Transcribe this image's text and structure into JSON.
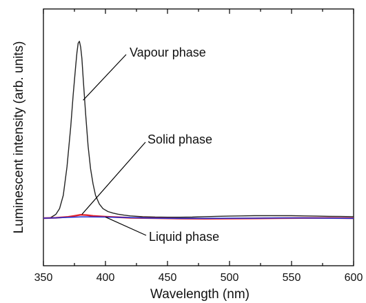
{
  "chart_data": {
    "type": "line",
    "title": "",
    "xlabel": "Wavelength (nm)",
    "ylabel": "Luminescent intensity (arb. units)",
    "xlim": [
      350,
      600
    ],
    "ylim": [
      -0.25,
      1.1
    ],
    "x_ticks": [
      "350",
      "400",
      "450",
      "500",
      "550",
      "600"
    ],
    "grid": false,
    "legend": "none",
    "colors": {
      "vapour": "#222222",
      "solid": "#e0202a",
      "liquid": "#1e2fd6"
    },
    "series": [
      {
        "name": "Vapour phase",
        "x": [
          350,
          355,
          360,
          363,
          366,
          369,
          372,
          374,
          376,
          377,
          378,
          379,
          380,
          381,
          382,
          384,
          386,
          388,
          390,
          392,
          395,
          398,
          402,
          406,
          410,
          415,
          420,
          430,
          440,
          450,
          460,
          470,
          480,
          490,
          500,
          510,
          520,
          530,
          540,
          550,
          560,
          570,
          580,
          590,
          600
        ],
        "values": [
          0.0,
          0.0,
          0.02,
          0.05,
          0.12,
          0.27,
          0.48,
          0.65,
          0.8,
          0.87,
          0.92,
          0.93,
          0.9,
          0.84,
          0.74,
          0.55,
          0.38,
          0.26,
          0.18,
          0.12,
          0.075,
          0.05,
          0.035,
          0.027,
          0.021,
          0.016,
          0.012,
          0.008,
          0.006,
          0.005,
          0.005,
          0.006,
          0.008,
          0.01,
          0.011,
          0.012,
          0.013,
          0.013,
          0.013,
          0.013,
          0.012,
          0.011,
          0.01,
          0.009,
          0.008
        ]
      },
      {
        "name": "Solid phase",
        "x": [
          350,
          360,
          370,
          375,
          380,
          385,
          390,
          400,
          410,
          420,
          440,
          460,
          480,
          500,
          520,
          540,
          560,
          580,
          600
        ],
        "values": [
          0.0,
          0.002,
          0.007,
          0.012,
          0.018,
          0.016,
          0.012,
          0.008,
          0.005,
          0.002,
          0.0,
          -0.002,
          -0.003,
          -0.002,
          -0.001,
          0.0,
          0.001,
          0.001,
          0.0
        ]
      },
      {
        "name": "Liquid phase",
        "x": [
          350,
          360,
          380,
          400,
          420,
          440,
          460,
          480,
          500,
          520,
          540,
          560,
          580,
          600
        ],
        "values": [
          0.0,
          0.002,
          0.007,
          0.006,
          0.003,
          0.0,
          -0.001,
          -0.001,
          0.0,
          0.0,
          0.001,
          0.001,
          0.0,
          -0.001
        ]
      }
    ],
    "annotations": [
      {
        "text": "Vapour phase",
        "target_series": "Vapour phase"
      },
      {
        "text": "Solid phase",
        "target_series": "Solid phase"
      },
      {
        "text": "Liquid phase",
        "target_series": "Liquid phase"
      }
    ]
  }
}
